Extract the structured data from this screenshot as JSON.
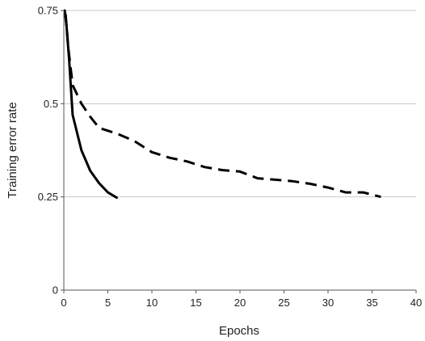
{
  "chart_data": {
    "type": "line",
    "title": "",
    "xlabel": "Epochs",
    "ylabel": "Training error rate",
    "xlim": [
      0,
      40
    ],
    "ylim": [
      0,
      0.75
    ],
    "x_ticks": [
      0,
      5,
      10,
      15,
      20,
      25,
      30,
      35,
      40
    ],
    "x_tick_labels": [
      "0",
      "5",
      "10",
      "15",
      "20",
      "25",
      "30",
      "35",
      "40"
    ],
    "y_ticks": [
      0,
      0.25,
      0.5,
      0.75
    ],
    "y_tick_labels": [
      "0",
      "0.25",
      "0.5",
      "0.75"
    ],
    "grid": {
      "horizontal": true,
      "vertical": false
    },
    "legend": "none",
    "series": [
      {
        "style": "solid",
        "color": "#000000",
        "points": [
          [
            0.1,
            0.75
          ],
          [
            0.3,
            0.71
          ],
          [
            0.6,
            0.62
          ],
          [
            1.0,
            0.47
          ],
          [
            2.0,
            0.375
          ],
          [
            3.0,
            0.32
          ],
          [
            4.0,
            0.287
          ],
          [
            5.0,
            0.262
          ],
          [
            6.0,
            0.248
          ]
        ]
      },
      {
        "style": "dashed",
        "color": "#000000",
        "points": [
          [
            0.2,
            0.74
          ],
          [
            0.5,
            0.65
          ],
          [
            1.0,
            0.55
          ],
          [
            2.0,
            0.5
          ],
          [
            3.0,
            0.465
          ],
          [
            4.0,
            0.435
          ],
          [
            6.0,
            0.42
          ],
          [
            8.0,
            0.4
          ],
          [
            10.0,
            0.37
          ],
          [
            12.0,
            0.355
          ],
          [
            14.0,
            0.345
          ],
          [
            16.0,
            0.33
          ],
          [
            18.0,
            0.322
          ],
          [
            20.0,
            0.318
          ],
          [
            22.0,
            0.3
          ],
          [
            24.0,
            0.296
          ],
          [
            26.0,
            0.292
          ],
          [
            28.0,
            0.285
          ],
          [
            30.0,
            0.275
          ],
          [
            32.0,
            0.262
          ],
          [
            34.0,
            0.262
          ],
          [
            36.0,
            0.25
          ]
        ]
      }
    ]
  }
}
